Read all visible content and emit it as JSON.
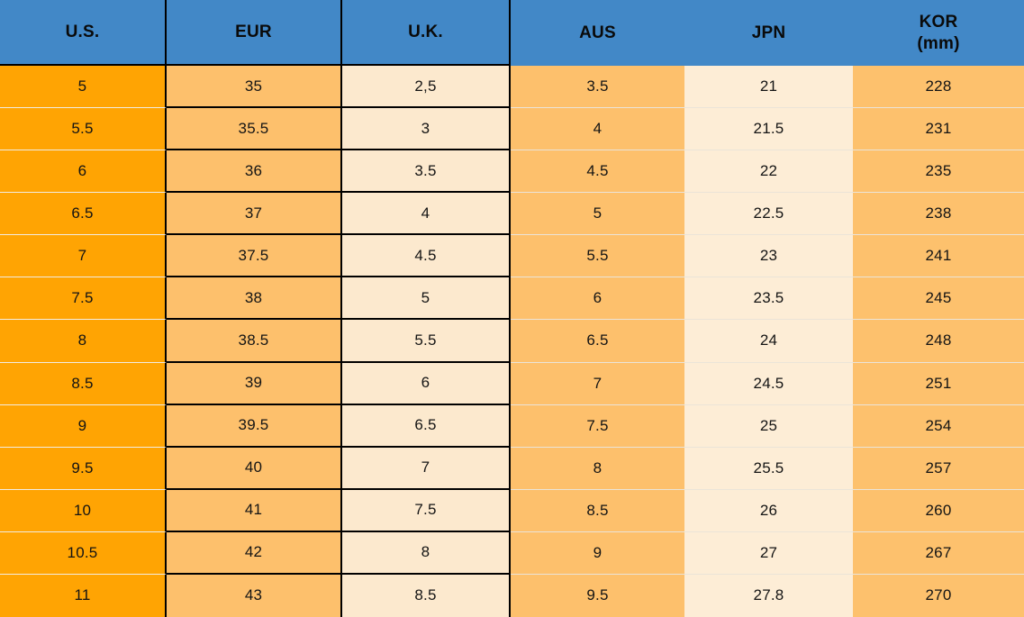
{
  "header": {
    "columns": [
      {
        "label": "U.S."
      },
      {
        "label": "EUR"
      },
      {
        "label": "U.K."
      },
      {
        "label": "AUS"
      },
      {
        "label": "JPN"
      },
      {
        "label": "KOR",
        "sublabel": "(mm)"
      }
    ]
  },
  "colors": {
    "header_bg": "#4288C7",
    "us_column_orange": "#FFA403",
    "eur_aus_kor_orange": "#FDC06C",
    "uk_cream": "#FCE9CE",
    "jpn_cream": "#FDEDD6",
    "grid_border": "#000000",
    "light_separator": "#EBE4D8",
    "text": "#141414"
  },
  "chart_data": {
    "type": "table",
    "columns": [
      "U.S.",
      "EUR",
      "U.K.",
      "AUS",
      "JPN",
      "KOR (mm)"
    ],
    "rows": [
      [
        "5",
        "35",
        "2,5",
        "3.5",
        "21",
        "228"
      ],
      [
        "5.5",
        "35.5",
        "3",
        "4",
        "21.5",
        "231"
      ],
      [
        "6",
        "36",
        "3.5",
        "4.5",
        "22",
        "235"
      ],
      [
        "6.5",
        "37",
        "4",
        "5",
        "22.5",
        "238"
      ],
      [
        "7",
        "37.5",
        "4.5",
        "5.5",
        "23",
        "241"
      ],
      [
        "7.5",
        "38",
        "5",
        "6",
        "23.5",
        "245"
      ],
      [
        "8",
        "38.5",
        "5.5",
        "6.5",
        "24",
        "248"
      ],
      [
        "8.5",
        "39",
        "6",
        "7",
        "24.5",
        "251"
      ],
      [
        "9",
        "39.5",
        "6.5",
        "7.5",
        "25",
        "254"
      ],
      [
        "9.5",
        "40",
        "7",
        "8",
        "25.5",
        "257"
      ],
      [
        "10",
        "41",
        "7.5",
        "8.5",
        "26",
        "260"
      ],
      [
        "10.5",
        "42",
        "8",
        "9",
        "27",
        "267"
      ],
      [
        "11",
        "43",
        "8.5",
        "9.5",
        "27.8",
        "270"
      ]
    ]
  }
}
